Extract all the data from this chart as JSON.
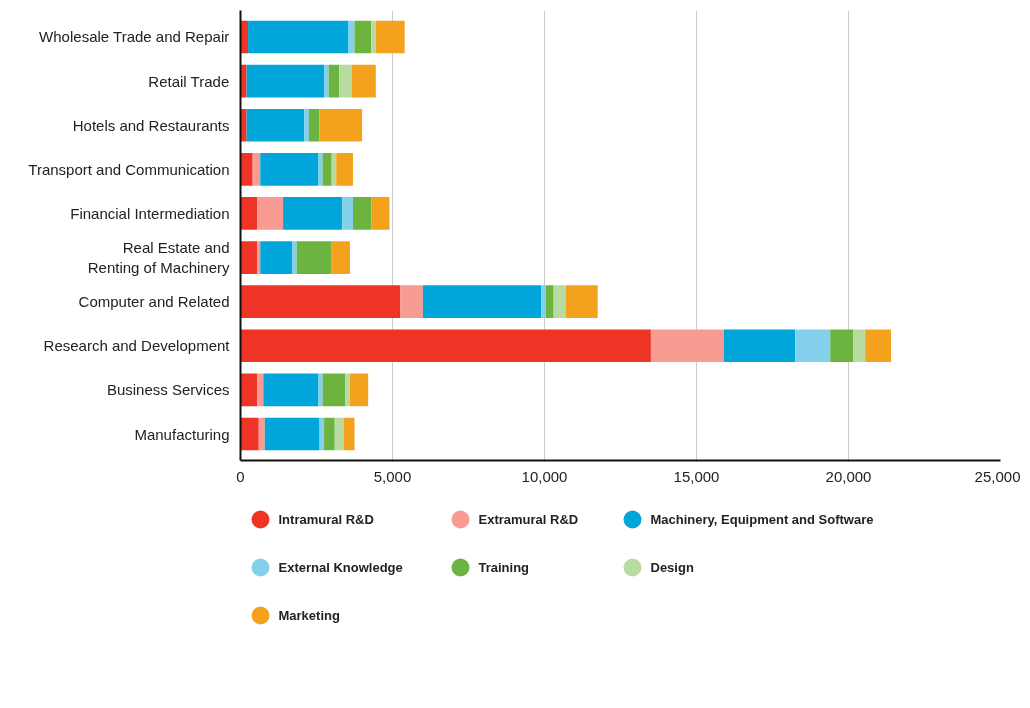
{
  "chart_data": {
    "type": "bar",
    "orientation": "horizontal",
    "stacked": true,
    "categories": [
      "Wholesale Trade and Repair",
      "Retail Trade",
      "Hotels and Restaurants",
      "Transport and Communication",
      "Financial Intermediation",
      "Real Estate and\nRenting of Machinery",
      "Computer and Related",
      "Research and Development",
      "Business Services",
      "Manufacturing"
    ],
    "series": [
      {
        "name": "Intramural R&D",
        "color": "#ee3424",
        "values": [
          250,
          200,
          200,
          400,
          550,
          550,
          5250,
          13500,
          550,
          600
        ]
      },
      {
        "name": "Extramural R&D",
        "color": "#f79b93",
        "values": [
          0,
          0,
          0,
          250,
          850,
          100,
          750,
          2400,
          200,
          200
        ]
      },
      {
        "name": "Machinery, Equipment and Software",
        "color": "#00a6d9",
        "values": [
          3300,
          2550,
          1900,
          1900,
          1950,
          1050,
          3900,
          2350,
          1800,
          1800
        ]
      },
      {
        "name": "External Knowledge",
        "color": "#82d0ec",
        "values": [
          200,
          150,
          150,
          150,
          350,
          150,
          150,
          1150,
          150,
          150
        ]
      },
      {
        "name": "Training",
        "color": "#6db33f",
        "values": [
          550,
          350,
          350,
          300,
          600,
          1150,
          250,
          750,
          750,
          350
        ]
      },
      {
        "name": "Design",
        "color": "#b7dba0",
        "values": [
          150,
          400,
          0,
          150,
          0,
          0,
          400,
          400,
          150,
          300
        ]
      },
      {
        "name": "Marketing",
        "color": "#f4a11d",
        "values": [
          950,
          800,
          1400,
          550,
          600,
          600,
          1050,
          850,
          600,
          350
        ]
      }
    ],
    "xlim": [
      0,
      25000
    ],
    "xticks": [
      {
        "value": 0,
        "label": "0"
      },
      {
        "value": 5000,
        "label": "5,000"
      },
      {
        "value": 10000,
        "label": "10,000"
      },
      {
        "value": 15000,
        "label": "15,000"
      },
      {
        "value": 20000,
        "label": "20,000"
      },
      {
        "value": 25000,
        "label": "25,000"
      }
    ],
    "grid": "x",
    "legend": "bottom"
  }
}
